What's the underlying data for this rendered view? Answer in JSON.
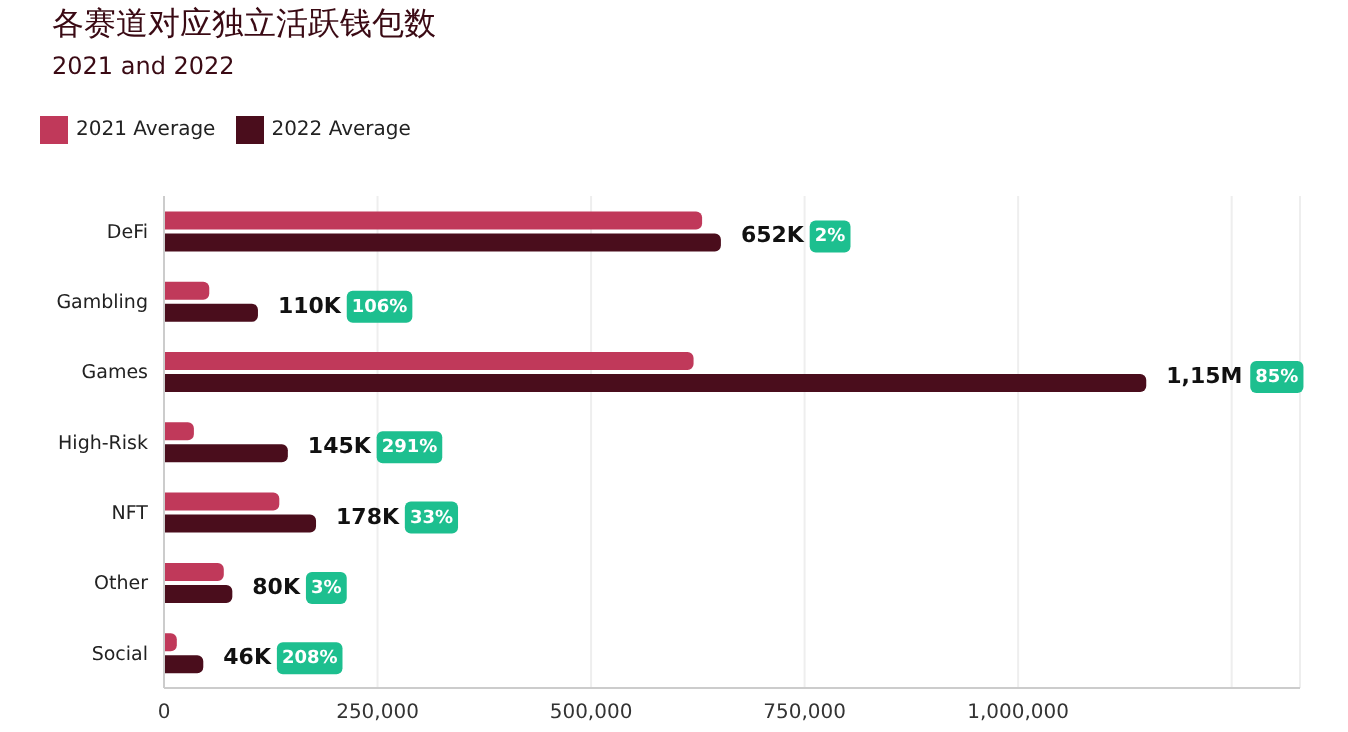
{
  "chart_data": {
    "type": "bar",
    "orientation": "horizontal",
    "title": "各赛道对应独立活跃钱包数",
    "subtitle": "2021 and 2022",
    "categories": [
      "DeFi",
      "Gambling",
      "Games",
      "High-Risk",
      "NFT",
      "Other",
      "Social"
    ],
    "series": [
      {
        "name": "2021 Average",
        "color": "#c0395a",
        "values": [
          630000,
          53000,
          620000,
          35000,
          135000,
          70000,
          15000
        ]
      },
      {
        "name": "2022 Average",
        "color": "#4a0d1c",
        "values": [
          652000,
          110000,
          1150000,
          145000,
          178000,
          80000,
          46000
        ],
        "value_labels": [
          "652K",
          "110K",
          "1,15M",
          "145K",
          "178K",
          "80K",
          "46K"
        ]
      }
    ],
    "xlim": [
      0,
      1330000
    ],
    "xticks": [
      0,
      {
        "value": 250000,
        "label": "250,000"
      },
      {
        "value": 500000,
        "label": "500,000"
      },
      {
        "value": 750000,
        "label": "750,000"
      },
      {
        "value": 1000000,
        "label": "1,000,000"
      },
      {
        "value": 1250000,
        "label": null
      }
    ],
    "grid": "x",
    "legend": "top left",
    "annotations": [
      "2%",
      "106%",
      "85%",
      "291%",
      "33%",
      "3%",
      "208%"
    ]
  }
}
